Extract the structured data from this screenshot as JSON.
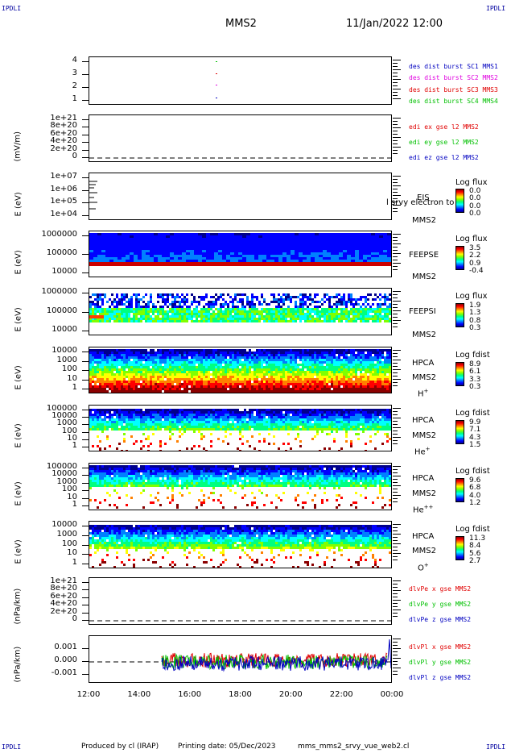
{
  "header": {
    "corner_label": "IPDLI",
    "spacecraft": "MMS2",
    "datetime": "11/Jan/2022 12:00"
  },
  "x_axis": {
    "ticks": [
      "12:00",
      "14:00",
      "16:00",
      "18:00",
      "20:00",
      "22:00",
      "00:00"
    ]
  },
  "panels": {
    "burst": {
      "yticks": [
        "4",
        "3",
        "2",
        "1"
      ],
      "legend": [
        {
          "text": "des dist burst SC1 MMS1",
          "color": "#0000c0"
        },
        {
          "text": "des dist burst SC2 MMS2",
          "color": "#e000e0"
        },
        {
          "text": "des dist burst SC3 MMS3",
          "color": "#e00000"
        },
        {
          "text": "des dist burst SC4 MMS4",
          "color": "#00c000"
        }
      ]
    },
    "edi": {
      "ylabel": "(mV/m)",
      "yticks": [
        "1e+21",
        "8e+20",
        "6e+20",
        "4e+20",
        "2e+20",
        "0"
      ],
      "legend": [
        {
          "text": "edi ex gse l2 MMS2",
          "color": "#e00000"
        },
        {
          "text": "edi ey gse l2 MMS2",
          "color": "#00c000"
        },
        {
          "text": "edi ez gse l2 MMS2",
          "color": "#0000c0"
        }
      ]
    },
    "eis": {
      "ylabel": "E (eV)",
      "yticks": [
        "1e+07",
        "1e+06",
        "1e+05",
        "1e+04"
      ],
      "instrument": "EIS",
      "overlap_text": "l srvy electron to",
      "spacecraft": "MMS2",
      "cb_title": "Log flux",
      "cb_ticks": [
        "0.0",
        "0.0",
        "0.0",
        "0.0"
      ]
    },
    "feepse": {
      "ylabel": "E (eV)",
      "yticks": [
        "1000000",
        "100000",
        "10000"
      ],
      "instrument": "FEEPSE",
      "spacecraft": "MMS2",
      "cb_title": "Log flux",
      "cb_ticks": [
        "3.5",
        "2.2",
        "0.9",
        "-0.4"
      ]
    },
    "feepsi": {
      "ylabel": "E (eV)",
      "yticks": [
        "1000000",
        "100000",
        "10000"
      ],
      "instrument": "FEEPSI",
      "spacecraft": "MMS2",
      "cb_title": "Log flux",
      "cb_ticks": [
        "1.9",
        "1.3",
        "0.8",
        "0.3"
      ]
    },
    "hpca_h": {
      "ylabel": "E (eV)",
      "yticks": [
        "10000",
        "1000",
        "100",
        "10",
        "1"
      ],
      "instrument": "HPCA",
      "spacecraft": "MMS2",
      "species": "H",
      "charge": "+",
      "cb_title": "Log fdist",
      "cb_ticks": [
        "8.9",
        "6.1",
        "3.3",
        "0.3"
      ]
    },
    "hpca_he": {
      "ylabel": "E (eV)",
      "yticks": [
        "100000",
        "10000",
        "1000",
        "100",
        "10",
        "1"
      ],
      "instrument": "HPCA",
      "spacecraft": "MMS2",
      "species": "He",
      "charge": "+",
      "cb_title": "Log fdist",
      "cb_ticks": [
        "9.9",
        "7.1",
        "4.3",
        "1.5"
      ]
    },
    "hpca_he2": {
      "ylabel": "E (eV)",
      "yticks": [
        "100000",
        "10000",
        "1000",
        "100",
        "10",
        "1"
      ],
      "instrument": "HPCA",
      "spacecraft": "MMS2",
      "species": "He",
      "charge": "++",
      "cb_title": "Log fdist",
      "cb_ticks": [
        "9.6",
        "6.8",
        "4.0",
        "1.2"
      ]
    },
    "hpca_o": {
      "ylabel": "E (eV)",
      "yticks": [
        "10000",
        "1000",
        "100",
        "10",
        "1"
      ],
      "instrument": "HPCA",
      "spacecraft": "MMS2",
      "species": "O",
      "charge": "+",
      "cb_title": "Log fdist",
      "cb_ticks": [
        "11.3",
        "8.4",
        "5.6",
        "2.7"
      ]
    },
    "divpe": {
      "ylabel": "(nPa/km)",
      "yticks": [
        "1e+21",
        "8e+20",
        "6e+20",
        "4e+20",
        "2e+20",
        "0"
      ],
      "legend": [
        {
          "text": "dlvPe x gse MMS2",
          "color": "#e00000"
        },
        {
          "text": "dlvPe y gse MMS2",
          "color": "#00c000"
        },
        {
          "text": "dlvPe z gse MMS2",
          "color": "#0000c0"
        }
      ]
    },
    "divpi": {
      "ylabel": "(nPa/km)",
      "yticks": [
        "0.001",
        "0.000",
        "-0.001"
      ],
      "legend": [
        {
          "text": "dlvPl x gse MMS2",
          "color": "#e00000"
        },
        {
          "text": "dlvPl y gse MMS2",
          "color": "#00c000"
        },
        {
          "text": "dlvPl z gse MMS2",
          "color": "#0000c0"
        }
      ]
    }
  },
  "footer": {
    "produced": "Produced by cl (IRAP)",
    "printing": "Printing date: 05/Dec/2023",
    "script": "mms_mms2_srvy_vue_web2.cl"
  },
  "chart_data": {
    "type": "heatmap",
    "x_range": [
      "12:00",
      "00:00"
    ],
    "colormap": "jet",
    "series": [
      {
        "name": "des dist burst SC1 MMS1",
        "y_level": 1,
        "time": "17:00"
      },
      {
        "name": "des dist burst SC2 MMS2",
        "y_level": 2,
        "time": "17:00"
      },
      {
        "name": "des dist burst SC3 MMS3",
        "y_level": 3,
        "time": "17:00"
      },
      {
        "name": "des dist burst SC4 MMS4",
        "y_level": 4,
        "time": "17:00"
      }
    ],
    "feepse_band": {
      "low_eV": 30000,
      "high_eV": 1000000
    },
    "feepsi_band": {
      "low_eV": 30000,
      "high_eV": 700000
    },
    "divpi_range": [
      -0.0015,
      0.0015
    ],
    "divpi_start": "14:50"
  }
}
